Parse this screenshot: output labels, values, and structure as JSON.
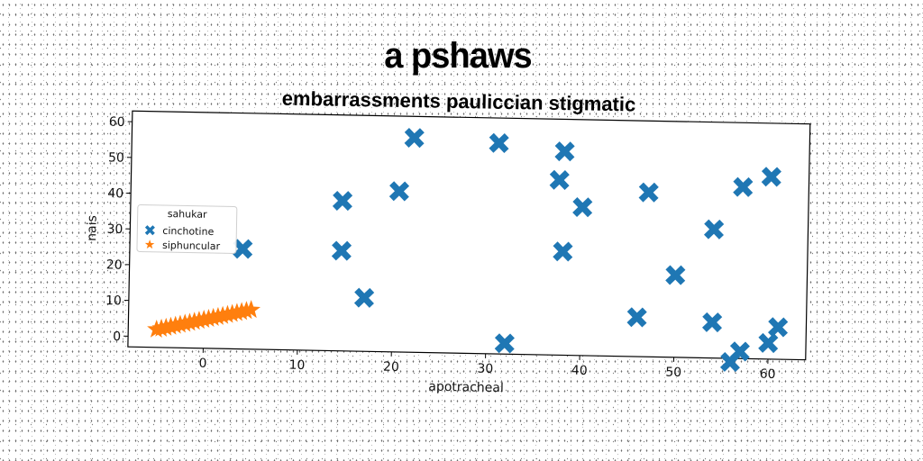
{
  "chart_data": {
    "type": "scatter",
    "title": "a pshaws",
    "subtitle": "embarrassments pauliccian stigmatic",
    "xlabel": "apotracheal",
    "ylabel": "nais",
    "xlim": [
      -8,
      64
    ],
    "ylim": [
      -3,
      63
    ],
    "xticks": [
      0,
      10,
      20,
      30,
      40,
      50,
      60
    ],
    "yticks": [
      0,
      10,
      20,
      30,
      40,
      50,
      60
    ],
    "grid": false,
    "legend": {
      "title": "sahukar",
      "placement": "center-left"
    },
    "series": [
      {
        "name": "cinchotine",
        "marker": "X",
        "color": "#1f77b4",
        "points": [
          [
            22,
            57
          ],
          [
            31,
            56
          ],
          [
            38,
            54
          ],
          [
            37.5,
            46
          ],
          [
            47,
            43
          ],
          [
            57,
            45
          ],
          [
            60,
            48
          ],
          [
            20.5,
            42
          ],
          [
            14.5,
            39
          ],
          [
            40,
            38.5
          ],
          [
            54,
            33
          ],
          [
            4,
            25
          ],
          [
            14.5,
            25
          ],
          [
            38,
            26
          ],
          [
            50,
            20
          ],
          [
            17,
            12
          ],
          [
            46,
            8
          ],
          [
            54,
            7
          ],
          [
            61,
            6
          ],
          [
            60,
            1.5
          ],
          [
            57,
            -1
          ],
          [
            56,
            -4
          ],
          [
            32,
            0
          ]
        ]
      },
      {
        "name": "siphuncular",
        "marker": "*",
        "color": "#ff7f0e",
        "points": [
          [
            -5,
            2
          ],
          [
            -4.5,
            2.3
          ],
          [
            -4,
            2.6
          ],
          [
            -3.5,
            2.9
          ],
          [
            -3,
            3.2
          ],
          [
            -2.5,
            3.5
          ],
          [
            -2,
            3.8
          ],
          [
            -1.5,
            4.1
          ],
          [
            -1,
            4.4
          ],
          [
            -0.5,
            4.7
          ],
          [
            0,
            5
          ],
          [
            0.5,
            5.3
          ],
          [
            1,
            5.6
          ],
          [
            1.5,
            5.9
          ],
          [
            2,
            6.2
          ],
          [
            2.5,
            6.5
          ],
          [
            3,
            6.8
          ],
          [
            3.5,
            7.1
          ],
          [
            4,
            7.4
          ],
          [
            4.5,
            7.7
          ],
          [
            5,
            8
          ]
        ]
      }
    ]
  }
}
